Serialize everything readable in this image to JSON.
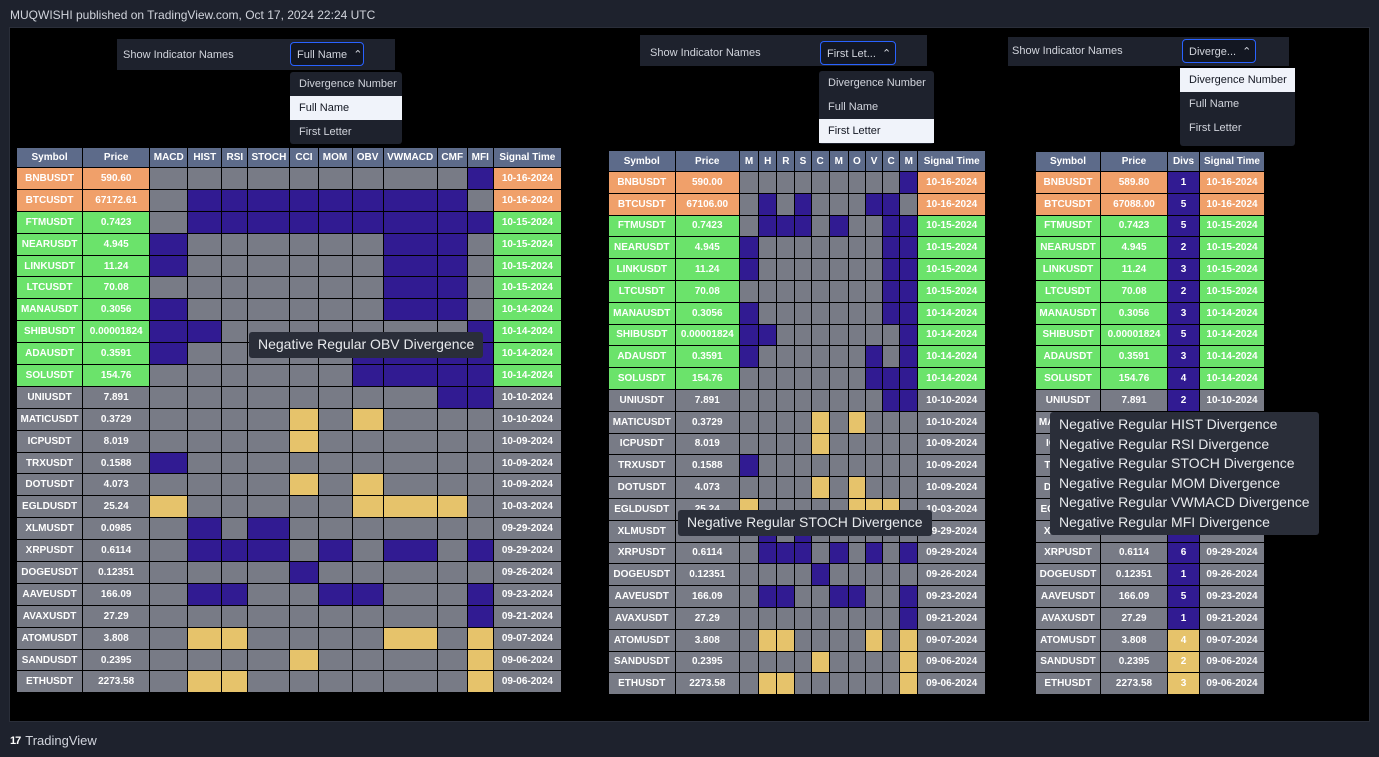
{
  "header": {
    "text": "MUQWISHI published on TradingView.com, Oct 17, 2024 22:24 UTC"
  },
  "footer": {
    "logo_mark": "17",
    "brand": "TradingView"
  },
  "colors": {
    "positive_cell": "#e6c36b",
    "negative_cell": "#311b92",
    "neutral_cell": "#787b86",
    "recent1": "#f0a06a",
    "recent2": "#6be36b",
    "header_cell": "#5d6b8a"
  },
  "panels": [
    {
      "control": {
        "label": "Show Indicator Names",
        "value": "Full Name"
      },
      "menu": {
        "items": [
          "Divergence Number",
          "Full Name",
          "First Letter"
        ],
        "selected": 1
      },
      "columns": [
        "Symbol",
        "Price",
        "MACD",
        "HIST",
        "RSI",
        "STOCH",
        "CCI",
        "MOM",
        "OBV",
        "VWMACD",
        "CMF",
        "MFI",
        "Signal Time"
      ],
      "tooltip": [
        "Negative Regular OBV Divergence"
      ],
      "rows": [
        {
          "symbol": "BNBUSDT",
          "price": "590.60",
          "time": "10-16-2024",
          "tier": 1,
          "cells": "gggggggggn"
        },
        {
          "symbol": "BTCUSDT",
          "price": "67172.61",
          "time": "10-16-2024",
          "tier": 1,
          "cells": "gnnnnnnnng"
        },
        {
          "symbol": "FTMUSDT",
          "price": "0.7423",
          "time": "10-15-2024",
          "tier": 2,
          "cells": "gnnnnnnnnn"
        },
        {
          "symbol": "NEARUSDT",
          "price": "4.945",
          "time": "10-15-2024",
          "tier": 2,
          "cells": "nggggggnng"
        },
        {
          "symbol": "LINKUSDT",
          "price": "11.24",
          "time": "10-15-2024",
          "tier": 2,
          "cells": "nggggggnng"
        },
        {
          "symbol": "LTCUSDT",
          "price": "70.08",
          "time": "10-15-2024",
          "tier": 2,
          "cells": "gggggggnng"
        },
        {
          "symbol": "MANAUSDT",
          "price": "0.3056",
          "time": "10-14-2024",
          "tier": 2,
          "cells": "nggggggnng"
        },
        {
          "symbol": "SHIBUSDT",
          "price": "0.00001824",
          "time": "10-14-2024",
          "tier": 2,
          "cells": "nngggggggn"
        },
        {
          "symbol": "ADAUSDT",
          "price": "0.3591",
          "time": "10-14-2024",
          "tier": 2,
          "cells": "ngggggnnnn"
        },
        {
          "symbol": "SOLUSDT",
          "price": "154.76",
          "time": "10-14-2024",
          "tier": 2,
          "cells": "ggggggnnnn"
        },
        {
          "symbol": "UNIUSDT",
          "price": "7.891",
          "time": "10-10-2024",
          "tier": 0,
          "cells": "ggggggggnn"
        },
        {
          "symbol": "MATICUSDT",
          "price": "0.3729",
          "time": "10-10-2024",
          "tier": 0,
          "cells": "ggggpgpggg"
        },
        {
          "symbol": "ICPUSDT",
          "price": "8.019",
          "time": "10-09-2024",
          "tier": 0,
          "cells": "ggggpggggg"
        },
        {
          "symbol": "TRXUSDT",
          "price": "0.1588",
          "time": "10-09-2024",
          "tier": 0,
          "cells": "nggggggggg"
        },
        {
          "symbol": "DOTUSDT",
          "price": "4.073",
          "time": "10-09-2024",
          "tier": 0,
          "cells": "ggggpgpggg"
        },
        {
          "symbol": "EGLDUSDT",
          "price": "25.24",
          "time": "10-03-2024",
          "tier": 0,
          "cells": "pgggggpppg"
        },
        {
          "symbol": "XLMUSDT",
          "price": "0.0985",
          "time": "09-29-2024",
          "tier": 0,
          "cells": "gngngggggg"
        },
        {
          "symbol": "XRPUSDT",
          "price": "0.6114",
          "time": "09-29-2024",
          "tier": 0,
          "cells": "gnnngngngn"
        },
        {
          "symbol": "DOGEUSDT",
          "price": "0.12351",
          "time": "09-26-2024",
          "tier": 0,
          "cells": "ggggnggggg"
        },
        {
          "symbol": "AAVEUSDT",
          "price": "166.09",
          "time": "09-23-2024",
          "tier": 0,
          "cells": "gnnggnnggn"
        },
        {
          "symbol": "AVAXUSDT",
          "price": "27.29",
          "time": "09-21-2024",
          "tier": 0,
          "cells": "gggggggggn"
        },
        {
          "symbol": "ATOMUSDT",
          "price": "3.808",
          "time": "09-07-2024",
          "tier": 0,
          "cells": "gppggggpgp"
        },
        {
          "symbol": "SANDUSDT",
          "price": "0.2395",
          "time": "09-06-2024",
          "tier": 0,
          "cells": "ggggpggggp"
        },
        {
          "symbol": "ETHUSDT",
          "price": "2273.58",
          "time": "09-06-2024",
          "tier": 0,
          "cells": "gppggggggp"
        }
      ]
    },
    {
      "control": {
        "label": "Show Indicator Names",
        "value": "First Let..."
      },
      "menu": {
        "items": [
          "Divergence Number",
          "Full Name",
          "First Letter"
        ],
        "selected": 2
      },
      "columns": [
        "Symbol",
        "Price",
        "M",
        "H",
        "R",
        "S",
        "C",
        "M",
        "O",
        "V",
        "C",
        "M",
        "Signal Time"
      ],
      "tooltip": [
        "Negative Regular STOCH Divergence"
      ],
      "rows": [
        {
          "symbol": "BNBUSDT",
          "price": "590.00",
          "time": "10-16-2024",
          "tier": 1,
          "cells": "gggggggggn"
        },
        {
          "symbol": "BTCUSDT",
          "price": "67106.00",
          "time": "10-16-2024",
          "tier": 1,
          "cells": "gngngggnng"
        },
        {
          "symbol": "FTMUSDT",
          "price": "0.7423",
          "time": "10-15-2024",
          "tier": 2,
          "cells": "gnnngnggnn"
        },
        {
          "symbol": "NEARUSDT",
          "price": "4.945",
          "time": "10-15-2024",
          "tier": 2,
          "cells": "ngggggggnn"
        },
        {
          "symbol": "LINKUSDT",
          "price": "11.24",
          "time": "10-15-2024",
          "tier": 2,
          "cells": "ngggggggnn"
        },
        {
          "symbol": "LTCUSDT",
          "price": "70.08",
          "time": "10-15-2024",
          "tier": 2,
          "cells": "ggggggggnn"
        },
        {
          "symbol": "MANAUSDT",
          "price": "0.3056",
          "time": "10-14-2024",
          "tier": 2,
          "cells": "ngggggggnn"
        },
        {
          "symbol": "SHIBUSDT",
          "price": "0.00001824",
          "time": "10-14-2024",
          "tier": 2,
          "cells": "nngggggggn"
        },
        {
          "symbol": "ADAUSDT",
          "price": "0.3591",
          "time": "10-14-2024",
          "tier": 2,
          "cells": "nggggggngn"
        },
        {
          "symbol": "SOLUSDT",
          "price": "154.76",
          "time": "10-14-2024",
          "tier": 2,
          "cells": "gggggggnnn"
        },
        {
          "symbol": "UNIUSDT",
          "price": "7.891",
          "time": "10-10-2024",
          "tier": 0,
          "cells": "ggggggggnn"
        },
        {
          "symbol": "MATICUSDT",
          "price": "0.3729",
          "time": "10-10-2024",
          "tier": 0,
          "cells": "ggggpgpggg"
        },
        {
          "symbol": "ICPUSDT",
          "price": "8.019",
          "time": "10-09-2024",
          "tier": 0,
          "cells": "ggggpggggg"
        },
        {
          "symbol": "TRXUSDT",
          "price": "0.1588",
          "time": "10-09-2024",
          "tier": 0,
          "cells": "nggggggggg"
        },
        {
          "symbol": "DOTUSDT",
          "price": "4.073",
          "time": "10-09-2024",
          "tier": 0,
          "cells": "ggggpgpggg"
        },
        {
          "symbol": "EGLDUSDT",
          "price": "25.24",
          "time": "10-03-2024",
          "tier": 0,
          "cells": "pgggggpppg"
        },
        {
          "symbol": "XLMUSDT",
          "price": "0.0985",
          "time": "09-29-2024",
          "tier": 0,
          "cells": "gngngggggg"
        },
        {
          "symbol": "XRPUSDT",
          "price": "0.6114",
          "time": "09-29-2024",
          "tier": 0,
          "cells": "gnnngngngn"
        },
        {
          "symbol": "DOGEUSDT",
          "price": "0.12351",
          "time": "09-26-2024",
          "tier": 0,
          "cells": "ggggnggggg"
        },
        {
          "symbol": "AAVEUSDT",
          "price": "166.09",
          "time": "09-23-2024",
          "tier": 0,
          "cells": "gnnggnnggn"
        },
        {
          "symbol": "AVAXUSDT",
          "price": "27.29",
          "time": "09-21-2024",
          "tier": 0,
          "cells": "gggggggggn"
        },
        {
          "symbol": "ATOMUSDT",
          "price": "3.808",
          "time": "09-07-2024",
          "tier": 0,
          "cells": "gppggggpgp"
        },
        {
          "symbol": "SANDUSDT",
          "price": "0.2395",
          "time": "09-06-2024",
          "tier": 0,
          "cells": "ggggpggggp"
        },
        {
          "symbol": "ETHUSDT",
          "price": "2273.58",
          "time": "09-06-2024",
          "tier": 0,
          "cells": "gppggggggp"
        }
      ]
    },
    {
      "control": {
        "label": "Show Indicator Names",
        "value": "Diverge..."
      },
      "menu": {
        "items": [
          "Divergence Number",
          "Full Name",
          "First Letter"
        ],
        "selected": 0
      },
      "columns": [
        "Symbol",
        "Price",
        "Divs",
        "Signal Time"
      ],
      "tooltip": [
        "Negative Regular HIST Divergence",
        "Negative Regular RSI Divergence",
        "Negative Regular STOCH Divergence",
        "Negative Regular MOM Divergence",
        "Negative Regular VWMACD Divergence",
        "Negative Regular MFI Divergence"
      ],
      "rows": [
        {
          "symbol": "BNBUSDT",
          "price": "589.80",
          "time": "10-16-2024",
          "tier": 1,
          "divs": "1",
          "sign": "n"
        },
        {
          "symbol": "BTCUSDT",
          "price": "67088.00",
          "time": "10-16-2024",
          "tier": 1,
          "divs": "5",
          "sign": "n"
        },
        {
          "symbol": "FTMUSDT",
          "price": "0.7423",
          "time": "10-15-2024",
          "tier": 2,
          "divs": "5",
          "sign": "n"
        },
        {
          "symbol": "NEARUSDT",
          "price": "4.945",
          "time": "10-15-2024",
          "tier": 2,
          "divs": "2",
          "sign": "n"
        },
        {
          "symbol": "LINKUSDT",
          "price": "11.24",
          "time": "10-15-2024",
          "tier": 2,
          "divs": "3",
          "sign": "n"
        },
        {
          "symbol": "LTCUSDT",
          "price": "70.08",
          "time": "10-15-2024",
          "tier": 2,
          "divs": "2",
          "sign": "n"
        },
        {
          "symbol": "MANAUSDT",
          "price": "0.3056",
          "time": "10-14-2024",
          "tier": 2,
          "divs": "3",
          "sign": "n"
        },
        {
          "symbol": "SHIBUSDT",
          "price": "0.00001824",
          "time": "10-14-2024",
          "tier": 2,
          "divs": "5",
          "sign": "n"
        },
        {
          "symbol": "ADAUSDT",
          "price": "0.3591",
          "time": "10-14-2024",
          "tier": 2,
          "divs": "3",
          "sign": "n"
        },
        {
          "symbol": "SOLUSDT",
          "price": "154.76",
          "time": "10-14-2024",
          "tier": 2,
          "divs": "4",
          "sign": "n"
        },
        {
          "symbol": "UNIUSDT",
          "price": "7.891",
          "time": "10-10-2024",
          "tier": 0,
          "divs": "2",
          "sign": "n"
        },
        {
          "symbol": "MATICUSDT",
          "price": "0.3729",
          "time": "10-10-2024",
          "tier": 0,
          "divs": "2",
          "sign": "p"
        },
        {
          "symbol": "ICPUSDT",
          "price": "8.019",
          "time": "10-09-2024",
          "tier": 0,
          "divs": "1",
          "sign": "p"
        },
        {
          "symbol": "TRXUSDT",
          "price": "0.1588",
          "time": "10-09-2024",
          "tier": 0,
          "divs": "1",
          "sign": "n"
        },
        {
          "symbol": "DOTUSDT",
          "price": "4.073",
          "time": "10-09-2024",
          "tier": 0,
          "divs": "2",
          "sign": "p"
        },
        {
          "symbol": "EGLDUSDT",
          "price": "25.24",
          "time": "10-03-2024",
          "tier": 0,
          "divs": "4",
          "sign": "p"
        },
        {
          "symbol": "XLMUSDT",
          "price": "0.0985",
          "time": "09-29-2024",
          "tier": 0,
          "divs": "2",
          "sign": "n"
        },
        {
          "symbol": "XRPUSDT",
          "price": "0.6114",
          "time": "09-29-2024",
          "tier": 0,
          "divs": "6",
          "sign": "n"
        },
        {
          "symbol": "DOGEUSDT",
          "price": "0.12351",
          "time": "09-26-2024",
          "tier": 0,
          "divs": "1",
          "sign": "n"
        },
        {
          "symbol": "AAVEUSDT",
          "price": "166.09",
          "time": "09-23-2024",
          "tier": 0,
          "divs": "5",
          "sign": "n"
        },
        {
          "symbol": "AVAXUSDT",
          "price": "27.29",
          "time": "09-21-2024",
          "tier": 0,
          "divs": "1",
          "sign": "n"
        },
        {
          "symbol": "ATOMUSDT",
          "price": "3.808",
          "time": "09-07-2024",
          "tier": 0,
          "divs": "4",
          "sign": "p"
        },
        {
          "symbol": "SANDUSDT",
          "price": "0.2395",
          "time": "09-06-2024",
          "tier": 0,
          "divs": "2",
          "sign": "p"
        },
        {
          "symbol": "ETHUSDT",
          "price": "2273.58",
          "time": "09-06-2024",
          "tier": 0,
          "divs": "3",
          "sign": "p"
        }
      ]
    }
  ]
}
